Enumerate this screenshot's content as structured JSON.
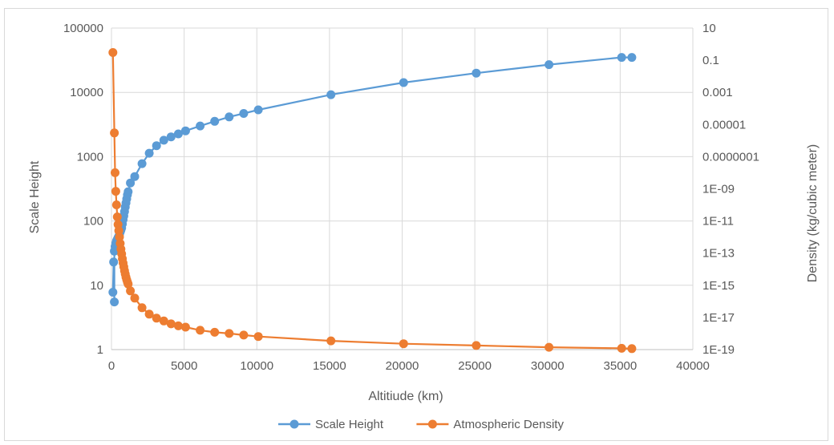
{
  "chart_data": {
    "type": "scatter",
    "title": "",
    "xlabel": "Altitiude (km)",
    "ylabel": "Scale Height",
    "y2label": "Density (kg/cubic meter)",
    "xlim": [
      0,
      40000
    ],
    "ylim": [
      1,
      100000
    ],
    "y2lim": [
      1e-19,
      10
    ],
    "x_scale": "linear",
    "y_scale": "log",
    "y2_scale": "log",
    "grid": true,
    "legend": "bottom",
    "x_ticks": [
      "0",
      "5000",
      "10000",
      "15000",
      "20000",
      "25000",
      "30000",
      "35000",
      "40000"
    ],
    "y_ticks": [
      "1",
      "10",
      "100",
      "1000",
      "10000",
      "100000"
    ],
    "y2_ticks": [
      "1E-19",
      "1E-17",
      "1E-15",
      "1E-13",
      "1E-11",
      "1E-09",
      "0.0000001",
      "0.00001",
      "0.001",
      "0.1",
      "10"
    ],
    "series": [
      {
        "name": "Scale Height",
        "axis": "left",
        "color": "#5b9bd5",
        "points": [
          [
            100,
            7.8
          ],
          [
            200,
            5.5
          ],
          [
            150,
            23
          ],
          [
            200,
            34
          ],
          [
            250,
            40
          ],
          [
            300,
            45
          ],
          [
            350,
            49
          ],
          [
            400,
            52
          ],
          [
            450,
            55
          ],
          [
            500,
            58
          ],
          [
            550,
            62
          ],
          [
            600,
            67
          ],
          [
            650,
            72
          ],
          [
            700,
            78
          ],
          [
            750,
            90
          ],
          [
            800,
            105
          ],
          [
            850,
            120
          ],
          [
            900,
            140
          ],
          [
            950,
            165
          ],
          [
            1000,
            190
          ],
          [
            1050,
            220
          ],
          [
            1100,
            255
          ],
          [
            1150,
            285
          ],
          [
            1300,
            390
          ],
          [
            1600,
            490
          ],
          [
            2100,
            780
          ],
          [
            2600,
            1130
          ],
          [
            3100,
            1480
          ],
          [
            3600,
            1800
          ],
          [
            4100,
            2030
          ],
          [
            4600,
            2260
          ],
          [
            5100,
            2520
          ],
          [
            6100,
            3000
          ],
          [
            7100,
            3550
          ],
          [
            8100,
            4150
          ],
          [
            9100,
            4700
          ],
          [
            10100,
            5350
          ],
          [
            15100,
            9200
          ],
          [
            20100,
            14200
          ],
          [
            25100,
            19900
          ],
          [
            30100,
            27000
          ],
          [
            35100,
            35000
          ],
          [
            35800,
            35000
          ]
        ]
      },
      {
        "name": "Atmospheric Density",
        "axis": "right",
        "color": "#ed7d31",
        "points": [
          [
            100,
            0.3
          ],
          [
            200,
            3e-06
          ],
          [
            250,
            1e-08
          ],
          [
            300,
            7e-10
          ],
          [
            350,
            1e-10
          ],
          [
            400,
            1.8e-11
          ],
          [
            450,
            6e-12
          ],
          [
            500,
            2.5e-12
          ],
          [
            550,
            1e-12
          ],
          [
            600,
            4e-13
          ],
          [
            650,
            1.8e-13
          ],
          [
            700,
            9e-14
          ],
          [
            750,
            4.5e-14
          ],
          [
            800,
            2.4e-14
          ],
          [
            850,
            1.4e-14
          ],
          [
            900,
            8e-15
          ],
          [
            950,
            5e-15
          ],
          [
            1000,
            3.2e-15
          ],
          [
            1050,
            2.2e-15
          ],
          [
            1100,
            1.6e-15
          ],
          [
            1150,
            1.2e-15
          ],
          [
            1300,
            4.5e-16
          ],
          [
            1600,
            1.6e-16
          ],
          [
            2100,
            4e-17
          ],
          [
            2600,
            1.6e-17
          ],
          [
            3100,
            9e-18
          ],
          [
            3600,
            6e-18
          ],
          [
            4100,
            4e-18
          ],
          [
            4600,
            3e-18
          ],
          [
            5100,
            2.5e-18
          ],
          [
            6100,
            1.6e-18
          ],
          [
            7100,
            1.2e-18
          ],
          [
            8100,
            1e-18
          ],
          [
            9100,
            8e-19
          ],
          [
            10100,
            6.5e-19
          ],
          [
            15100,
            3.5e-19
          ],
          [
            20100,
            2.3e-19
          ],
          [
            25100,
            1.8e-19
          ],
          [
            30100,
            1.4e-19
          ],
          [
            35100,
            1.2e-19
          ],
          [
            35800,
            1.15e-19
          ]
        ]
      }
    ]
  }
}
